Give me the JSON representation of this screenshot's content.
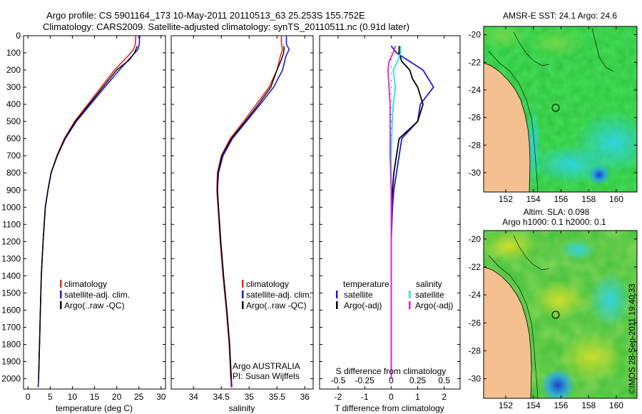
{
  "header": {
    "line1": "Argo profile: CS 5901164_173 10-May-2011 20110513_63 25.253S 155.752E",
    "line2": "Climatology: CARS2009. Satellite-adjusted climatology: synTS_20110511.nc (0.91d later)"
  },
  "colors": {
    "climatology": "#e8281f",
    "satellite": "#1a1adf",
    "argo": "#000000",
    "sal_satellite": "#22e5e5",
    "sal_argo": "#e022d0",
    "land": "#f5c08f",
    "green": "#3cc43c"
  },
  "chart_data": [
    {
      "type": "line",
      "name": "temperature-profile",
      "xlabel": "temperature (deg C)",
      "ylabel": "",
      "xlim": [
        -1,
        31
      ],
      "ylim": [
        2060,
        0
      ],
      "xticks": [
        0,
        5,
        10,
        15,
        20,
        25,
        30
      ],
      "yticks": [
        0,
        100,
        200,
        300,
        400,
        500,
        600,
        700,
        800,
        900,
        1000,
        1100,
        1200,
        1300,
        1400,
        1500,
        1600,
        1700,
        1800,
        1900,
        2000
      ],
      "legend": [
        "climatology",
        "satellite-adj. clim.",
        "Argo(..raw -QC)"
      ],
      "series": [
        {
          "name": "climatology",
          "x": [
            24.3,
            24.2,
            23.8,
            22.5,
            19.5,
            16.5,
            13.5,
            10.5,
            8.2,
            6.5,
            5.2,
            4.5,
            3.9,
            3.4,
            3.0,
            2.8,
            2.6,
            2.4,
            2.3
          ],
          "y": [
            0,
            50,
            80,
            120,
            200,
            300,
            400,
            500,
            600,
            700,
            800,
            900,
            1000,
            1200,
            1400,
            1600,
            1800,
            2000,
            2050
          ]
        },
        {
          "name": "satellite-adj. clim.",
          "x": [
            25.2,
            25.1,
            24.8,
            23.4,
            20.6,
            17.3,
            14.1,
            10.9,
            8.4,
            6.6,
            5.2,
            4.5,
            3.9,
            3.4,
            3.0,
            2.8,
            2.6,
            2.4,
            2.3
          ],
          "y": [
            0,
            50,
            80,
            120,
            200,
            300,
            400,
            500,
            600,
            700,
            800,
            900,
            1000,
            1200,
            1400,
            1600,
            1800,
            2000,
            2050
          ]
        },
        {
          "name": "Argo(..raw -QC)",
          "x": [
            24.6,
            24.5,
            24.0,
            22.9,
            20.0,
            16.9,
            13.8,
            10.7,
            8.3,
            6.6,
            5.2,
            4.5,
            3.9,
            3.4,
            3.0,
            2.8,
            2.6,
            2.4
          ],
          "y": [
            60,
            70,
            100,
            140,
            200,
            300,
            400,
            500,
            600,
            700,
            800,
            900,
            1000,
            1200,
            1400,
            1600,
            1800,
            2000
          ]
        }
      ]
    },
    {
      "type": "line",
      "name": "salinity-profile",
      "xlabel": "salinity",
      "ylabel": "",
      "xlim": [
        33.6,
        36.15
      ],
      "ylim": [
        2060,
        0
      ],
      "xticks": [
        34,
        34.5,
        35,
        35.5,
        36
      ],
      "legend": [
        "climatology",
        "satellite-adj. clim.",
        "Argo(..raw -QC)"
      ],
      "annotation": [
        "Argo AUSTRALIA",
        "PI: Susan Wijffels"
      ],
      "series": [
        {
          "name": "climatology",
          "x": [
            35.58,
            35.58,
            35.6,
            35.56,
            35.5,
            35.36,
            35.13,
            34.9,
            34.66,
            34.5,
            34.43,
            34.42,
            34.44,
            34.48,
            34.53,
            34.59,
            34.64,
            34.67,
            34.68
          ],
          "y": [
            0,
            50,
            80,
            120,
            200,
            300,
            400,
            500,
            600,
            700,
            800,
            900,
            1000,
            1200,
            1400,
            1600,
            1800,
            2000,
            2050
          ]
        },
        {
          "name": "satellite-adj. clim.",
          "x": [
            35.67,
            35.67,
            35.72,
            35.66,
            35.6,
            35.44,
            35.2,
            34.95,
            34.7,
            34.53,
            34.45,
            34.43,
            34.45,
            34.49,
            34.54,
            34.6,
            34.65,
            34.68,
            34.69
          ],
          "y": [
            0,
            50,
            80,
            120,
            200,
            300,
            400,
            500,
            600,
            700,
            800,
            900,
            1000,
            1200,
            1400,
            1600,
            1800,
            2000,
            2050
          ]
        },
        {
          "name": "Argo(..raw -QC)",
          "x": [
            35.62,
            35.63,
            35.62,
            35.58,
            35.5,
            35.39,
            35.17,
            34.93,
            34.68,
            34.51,
            34.44,
            34.43,
            34.45,
            34.49,
            34.54,
            34.6,
            34.65,
            34.68
          ],
          "y": [
            60,
            70,
            100,
            140,
            200,
            300,
            400,
            500,
            600,
            700,
            800,
            900,
            1000,
            1200,
            1400,
            1600,
            1800,
            2000
          ]
        }
      ]
    },
    {
      "type": "line",
      "name": "difference-profile",
      "xlabel": "T difference from climatology",
      "xlabel2": "S difference from climatology",
      "xlim": [
        -2.7,
        2.6
      ],
      "ylim": [
        2060,
        0
      ],
      "xticks": [
        -2,
        -1,
        0,
        1,
        2
      ],
      "xticks2": [
        -0.5,
        -0.25,
        0,
        0.25,
        0.5
      ],
      "xticks2_labels": [
        "-0.5",
        "-0.25",
        "0",
        "0.25",
        "0.5"
      ],
      "legend_titles": [
        "temperature",
        "salinity"
      ],
      "legend": [
        "satellite",
        "Argo(-adj)",
        "satellite",
        "Argo(-adj)"
      ],
      "series": [
        {
          "name": "T satellite",
          "x": [
            0.0,
            0.2,
            0.5,
            1.0,
            1.2,
            1.6,
            1.1,
            1.0,
            0.4,
            0.3,
            0.2,
            0.1,
            0.05,
            0.0,
            0.0,
            0.0,
            0.0,
            0.0
          ],
          "y": [
            60,
            100,
            130,
            180,
            200,
            300,
            400,
            500,
            600,
            700,
            800,
            900,
            1000,
            1200,
            1400,
            1600,
            1800,
            2000
          ]
        },
        {
          "name": "T Argo(-adj)",
          "x": [
            0.3,
            0.3,
            0.4,
            0.7,
            0.8,
            1.0,
            1.2,
            1.0,
            0.3,
            0.2,
            0.1,
            0.05,
            0.0,
            0.0,
            0.0,
            0.0,
            0.0,
            0.0
          ],
          "y": [
            60,
            100,
            150,
            200,
            250,
            300,
            400,
            500,
            600,
            700,
            800,
            900,
            1000,
            1200,
            1400,
            1600,
            1800,
            2000
          ]
        },
        {
          "name": "S satellite",
          "x": [
            0.09,
            0.09,
            0.06,
            0.02,
            0.04,
            0.02,
            0.01,
            0.0,
            0.0,
            0.0,
            0.0,
            0.0,
            0.0
          ],
          "y": [
            60,
            100,
            150,
            200,
            300,
            400,
            500,
            700,
            900,
            1200,
            1500,
            1800,
            2000
          ]
        },
        {
          "name": "S Argo(-adj)",
          "x": [
            0.04,
            0.02,
            -0.02,
            -0.03,
            -0.02,
            -0.01,
            -0.01,
            -0.01,
            0.0,
            0.0,
            0.0,
            0.0,
            0.0
          ],
          "y": [
            60,
            100,
            150,
            200,
            300,
            400,
            500,
            700,
            900,
            1200,
            1500,
            1800,
            2000
          ]
        }
      ]
    },
    {
      "type": "heatmap",
      "name": "sst-map",
      "title": "AMSR-E SST: 24.1  Argo: 24.6",
      "xlim": [
        150.4,
        161.5
      ],
      "ylim": [
        -31.4,
        -19.4
      ],
      "xticks": [
        152,
        154,
        156,
        158,
        160
      ],
      "yticks": [
        -20,
        -22,
        -24,
        -26,
        -28,
        -30
      ],
      "argo_position": [
        155.752,
        -25.253
      ]
    },
    {
      "type": "heatmap",
      "name": "sla-map",
      "title": "Altim. SLA: 0.098",
      "subtitle": "Argo h1000: 0.1 h2000: 0.1",
      "xlim": [
        150.4,
        161.5
      ],
      "ylim": [
        -31.4,
        -19.4
      ],
      "xticks": [
        152,
        154,
        156,
        158,
        160
      ],
      "yticks": [
        -20,
        -22,
        -24,
        -26,
        -28,
        -30
      ],
      "argo_position": [
        155.752,
        -25.253
      ]
    }
  ],
  "credit": "©IMOS 28-Sep-2011 19:40:33"
}
